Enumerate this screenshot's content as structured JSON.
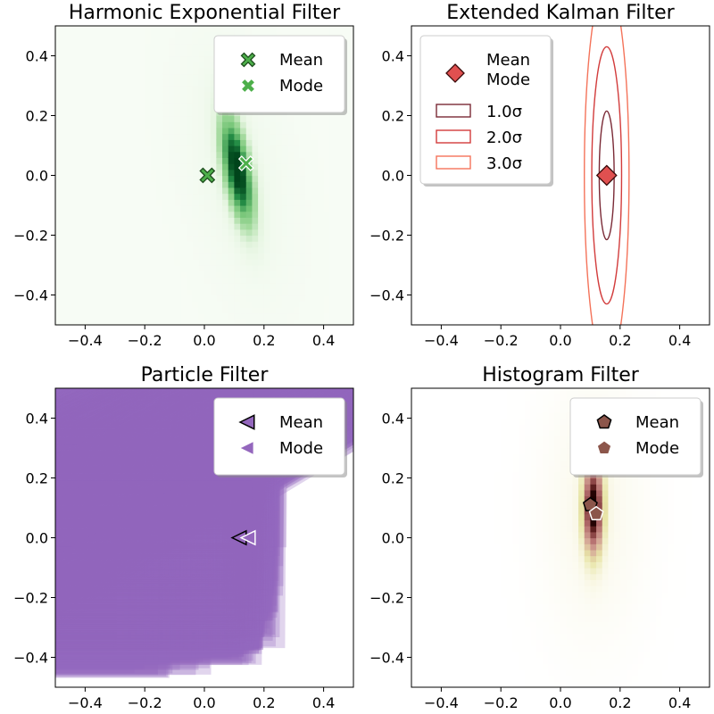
{
  "chart_data": [
    {
      "type": "heatmap",
      "title": "Harmonic Exponential Filter",
      "xlim": [
        -0.5,
        0.5
      ],
      "ylim": [
        -0.5,
        0.5
      ],
      "xticks": [
        -0.4,
        -0.2,
        0.0,
        0.2,
        0.4
      ],
      "yticks": [
        -0.4,
        -0.2,
        0.0,
        0.2,
        0.4
      ],
      "xtick_labels": [
        "−0.4",
        "−0.2",
        "0.0",
        "0.2",
        "0.4"
      ],
      "ytick_labels": [
        "−0.4",
        "−0.2",
        "0.0",
        "0.2",
        "0.4"
      ],
      "colormap": "Greens",
      "density": {
        "center_x": 0.11,
        "center_y": 0.02,
        "sigma_x": 0.03,
        "sigma_y": 0.12,
        "tilt": -0.18
      },
      "markers": {
        "mean": {
          "x": 0.01,
          "y": 0.0
        },
        "mode": {
          "x": 0.14,
          "y": 0.04
        }
      },
      "legend": {
        "position": "upper right",
        "entries": [
          "Mean",
          "Mode"
        ]
      },
      "colors": {
        "mean": "#4daf4a",
        "mode": "#4daf4a"
      }
    },
    {
      "type": "contour",
      "title": "Extended Kalman Filter",
      "xlim": [
        -0.5,
        0.5
      ],
      "ylim": [
        -0.5,
        0.5
      ],
      "xticks": [
        -0.4,
        -0.2,
        0.0,
        0.2,
        0.4
      ],
      "yticks": [
        -0.4,
        -0.2,
        0.0,
        0.2,
        0.4
      ],
      "xtick_labels": [
        "−0.4",
        "−0.2",
        "0.0",
        "0.2",
        "0.4"
      ],
      "ytick_labels": [
        "−0.4",
        "−0.2",
        "0.0",
        "0.2",
        "0.4"
      ],
      "center": {
        "x": 0.155,
        "y": 0.0
      },
      "std": {
        "x": 0.025,
        "y": 0.215
      },
      "ellipses": [
        {
          "sigma": 1,
          "label": "1.0σ",
          "color": "#7a2a36"
        },
        {
          "sigma": 2,
          "label": "2.0σ",
          "color": "#d23c3c"
        },
        {
          "sigma": 3,
          "label": "3.0σ",
          "color": "#f4735a"
        }
      ],
      "markers": {
        "mean_mode": {
          "x": 0.155,
          "y": 0.0
        }
      },
      "legend": {
        "position": "upper left",
        "entries": [
          "Mean",
          "Mode"
        ]
      },
      "colors": {
        "marker": "#e05050"
      }
    },
    {
      "type": "scatter",
      "title": "Particle Filter",
      "xlim": [
        -0.5,
        0.5
      ],
      "ylim": [
        -0.5,
        0.5
      ],
      "xticks": [
        -0.4,
        -0.2,
        0.0,
        0.2,
        0.4
      ],
      "yticks": [
        -0.4,
        -0.2,
        0.0,
        0.2,
        0.4
      ],
      "xtick_labels": [
        "−0.4",
        "−0.2",
        "0.0",
        "0.2",
        "0.4"
      ],
      "ytick_labels": [
        "−0.4",
        "−0.2",
        "0.0",
        "0.2",
        "0.4"
      ],
      "particles": {
        "count": 2500,
        "dense_x": [
          0.05,
          0.27
        ],
        "y_range": [
          -0.48,
          0.48
        ],
        "tail_x_min": -0.35
      },
      "markers": {
        "mean": {
          "x": 0.12,
          "y": 0.0
        },
        "mode": {
          "x": 0.15,
          "y": 0.0
        }
      },
      "legend": {
        "position": "upper right",
        "entries": [
          "Mean",
          "Mode"
        ]
      },
      "colors": {
        "particle": "#9467bd"
      }
    },
    {
      "type": "heatmap",
      "title": "Histogram Filter",
      "xlim": [
        -0.5,
        0.5
      ],
      "ylim": [
        -0.5,
        0.5
      ],
      "xticks": [
        -0.4,
        -0.2,
        0.0,
        0.2,
        0.4
      ],
      "yticks": [
        -0.4,
        -0.2,
        0.0,
        0.2,
        0.4
      ],
      "xtick_labels": [
        "−0.4",
        "−0.2",
        "0.0",
        "0.2",
        "0.4"
      ],
      "ytick_labels": [
        "−0.4",
        "−0.2",
        "0.0",
        "0.2",
        "0.4"
      ],
      "colormap": "pink_r",
      "density": {
        "center_x": 0.11,
        "center_y": 0.1,
        "sigma_x": 0.022,
        "sigma_y": 0.1,
        "tilt": 0.0
      },
      "markers": {
        "mean": {
          "x": 0.1,
          "y": 0.11
        },
        "mode": {
          "x": 0.12,
          "y": 0.08
        }
      },
      "legend": {
        "position": "upper right",
        "entries": [
          "Mean",
          "Mode"
        ]
      },
      "colors": {
        "mean": "#8c564b",
        "mode": "#8c564b"
      }
    }
  ]
}
